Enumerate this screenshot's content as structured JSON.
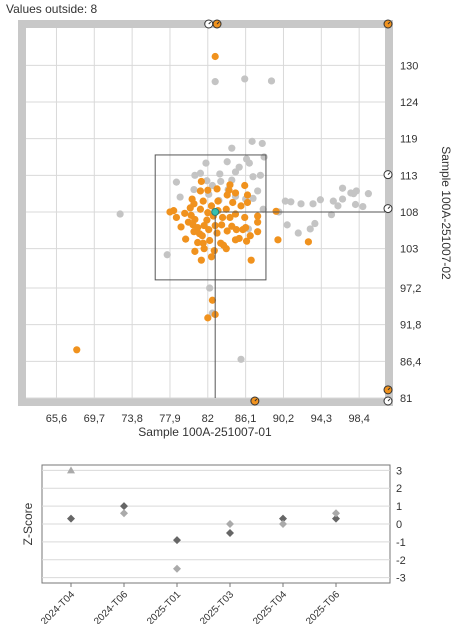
{
  "header": {
    "values_outside": "Values outside: 8"
  },
  "colors": {
    "frame": "#c8c8c8",
    "plot_bg": "#ffffff",
    "grid": "#d9d9d9",
    "orange": "#f0921e",
    "gray_point": "#c4c4c4",
    "center_point": "#36c0b0",
    "marker_dark": "#555555",
    "diamond_dark": "#666666",
    "diamond_light": "#aaaaaa"
  },
  "chart_data": [
    {
      "type": "scatter",
      "title": "",
      "xlabel": "Sample 100A-251007-01",
      "ylabel": "Sample 100A-251007-02",
      "xlim": [
        62.3,
        101.2
      ],
      "ylim": [
        81,
        135.5
      ],
      "x_ticks": [
        "65,6",
        "69,7",
        "73,8",
        "77,9",
        "82",
        "86,1",
        "90,2",
        "94,3",
        "98,4"
      ],
      "x_tick_values": [
        65.6,
        69.7,
        73.8,
        77.9,
        82,
        86.1,
        90.2,
        94.3,
        98.4
      ],
      "y_ticks": [
        "130",
        "124",
        "119",
        "113",
        "108",
        "103",
        "97,2",
        "91,8",
        "86,4",
        "81"
      ],
      "y_tick_values": [
        130,
        124.6,
        119.2,
        113.8,
        108.4,
        103,
        97.2,
        91.8,
        86.4,
        81
      ],
      "grid": true,
      "center": {
        "x": 82.8,
        "y": 108.4
      },
      "inner_box": {
        "x": [
          76.3,
          88.3
        ],
        "y": [
          98.4,
          116.8
        ]
      },
      "series": [
        {
          "color": "gray",
          "points": [
            [
              82.8,
              127.6
            ],
            [
              86.0,
              128.0
            ],
            [
              88.9,
              127.7
            ],
            [
              86.8,
              118.8
            ],
            [
              87.9,
              118.5
            ],
            [
              84.6,
              117.8
            ],
            [
              88.1,
              116.5
            ],
            [
              86.2,
              116.2
            ],
            [
              84.1,
              115.8
            ],
            [
              86.5,
              115.6
            ],
            [
              81.8,
              115.6
            ],
            [
              80.6,
              113.8
            ],
            [
              87.7,
              113.8
            ],
            [
              83.4,
              112.9
            ],
            [
              78.6,
              112.8
            ],
            [
              79.0,
              110.6
            ],
            [
              86.9,
              110.4
            ],
            [
              90.4,
              110.0
            ],
            [
              91.0,
              109.9
            ],
            [
              92.1,
              109.6
            ],
            [
              93.4,
              109.6
            ],
            [
              94.2,
              110.2
            ],
            [
              95.6,
              110.0
            ],
            [
              96.1,
              109.3
            ],
            [
              96.6,
              110.3
            ],
            [
              96.6,
              111.9
            ],
            [
              97.5,
              111.2
            ],
            [
              98.1,
              111.5
            ],
            [
              97.8,
              111.1
            ],
            [
              98.0,
              109.5
            ],
            [
              99.4,
              111.1
            ],
            [
              98.8,
              109.2
            ],
            [
              88.0,
              108.8
            ],
            [
              89.7,
              108.4
            ],
            [
              90.6,
              106.5
            ],
            [
              93.6,
              106.7
            ],
            [
              95.4,
              108.0
            ],
            [
              91.8,
              105.3
            ],
            [
              93.1,
              105.9
            ],
            [
              86.4,
              105.9
            ],
            [
              72.5,
              108.1
            ],
            [
              77.6,
              102.1
            ],
            [
              82.2,
              97.2
            ],
            [
              82.5,
              93.5
            ],
            [
              85.6,
              86.7
            ],
            [
              81.9,
              113.0
            ],
            [
              82.5,
              112.3
            ],
            [
              85.0,
              110.7
            ],
            [
              83.2,
              110.1
            ],
            [
              84.6,
              113.1
            ],
            [
              86.9,
              113.6
            ],
            [
              83.3,
              114.0
            ],
            [
              85.0,
              114.3
            ],
            [
              85.4,
              115.0
            ],
            [
              81.2,
              114.1
            ],
            [
              82.1,
              111.0
            ],
            [
              80.5,
              111.7
            ],
            [
              86.1,
              110.3
            ],
            [
              87.4,
              111.5
            ],
            [
              84.2,
              111.7
            ]
          ]
        },
        {
          "color": "orange",
          "points": [
            [
              82.8,
              131.3
            ],
            [
              78.3,
              108.6
            ],
            [
              77.9,
              108.4
            ],
            [
              78.6,
              107.6
            ],
            [
              79.5,
              108.2
            ],
            [
              79.9,
              106.9
            ],
            [
              80.1,
              109.0
            ],
            [
              80.2,
              107.9
            ],
            [
              80.4,
              106.5
            ],
            [
              80.6,
              107.3
            ],
            [
              80.9,
              106.1
            ],
            [
              81.1,
              105.2
            ],
            [
              80.5,
              105.5
            ],
            [
              80.9,
              103.9
            ],
            [
              81.5,
              103.8
            ],
            [
              81.2,
              108.8
            ],
            [
              81.5,
              110.0
            ],
            [
              81.2,
              111.5
            ],
            [
              81.3,
              112.9
            ],
            [
              82.0,
              111.6
            ],
            [
              81.4,
              104.9
            ],
            [
              82.1,
              105.8
            ],
            [
              82.2,
              104.2
            ],
            [
              83.0,
              105.3
            ],
            [
              82.8,
              106.4
            ],
            [
              83.1,
              110.0
            ],
            [
              83.6,
              107.6
            ],
            [
              84.4,
              107.6
            ],
            [
              84.0,
              108.8
            ],
            [
              84.6,
              106.3
            ],
            [
              84.1,
              105.6
            ],
            [
              85.0,
              104.3
            ],
            [
              85.8,
              105.8
            ],
            [
              86.1,
              106.1
            ],
            [
              86.6,
              104.9
            ],
            [
              85.4,
              104.5
            ],
            [
              86.2,
              104.1
            ],
            [
              85.6,
              109.3
            ],
            [
              86.3,
              109.8
            ],
            [
              87.4,
              107.8
            ],
            [
              87.4,
              106.9
            ],
            [
              87.4,
              105.5
            ],
            [
              86.7,
              101.3
            ],
            [
              84.1,
              110.9
            ],
            [
              85.0,
              111.2
            ],
            [
              86.3,
              110.9
            ],
            [
              89.4,
              108.5
            ],
            [
              89.6,
              104.3
            ],
            [
              92.9,
              104.0
            ],
            [
              82.0,
              108.3
            ],
            [
              82.4,
              109.3
            ],
            [
              81.9,
              107.2
            ],
            [
              82.6,
              107.8
            ],
            [
              83.1,
              108.6
            ],
            [
              83.4,
              103.8
            ],
            [
              83.7,
              103.5
            ],
            [
              84.0,
              103.0
            ],
            [
              82.4,
              101.8
            ],
            [
              81.3,
              101.3
            ],
            [
              80.6,
              102.6
            ],
            [
              84.7,
              109.8
            ],
            [
              84.3,
              111.6
            ],
            [
              82.5,
              95.4
            ],
            [
              82.8,
              93.3
            ],
            [
              82.0,
              92.8
            ],
            [
              67.8,
              88.1
            ],
            [
              81.6,
              103.0
            ],
            [
              82.7,
              102.7
            ],
            [
              79.6,
              104.4
            ],
            [
              79.1,
              106.2
            ],
            [
              80.3,
              110.3
            ],
            [
              83.0,
              111.8
            ],
            [
              84.4,
              112.4
            ],
            [
              86.0,
              112.3
            ],
            [
              85.0,
              108.1
            ],
            [
              86.0,
              107.6
            ],
            [
              83.5,
              106.5
            ],
            [
              85.1,
              105.8
            ],
            [
              81.6,
              106.4
            ],
            [
              80.5,
              109.6
            ]
          ]
        }
      ],
      "outside_markers": [
        {
          "x": 82.1,
          "edge": "top",
          "style": "dark"
        },
        {
          "x": 83.0,
          "edge": "top",
          "style": "orange"
        },
        {
          "x": 101.2,
          "edge": "top-right",
          "style": "orange"
        },
        {
          "y": 113.9,
          "edge": "right",
          "style": "dark"
        },
        {
          "y": 108.9,
          "edge": "right",
          "style": "dark"
        },
        {
          "x": 87.1,
          "edge": "bottom",
          "style": "orange"
        },
        {
          "x": 101.2,
          "edge": "bottom-right",
          "style": "dark"
        },
        {
          "x": 101.2,
          "y": 82.2,
          "edge": "right",
          "style": "orange"
        }
      ]
    },
    {
      "type": "scatter",
      "ylabel": "Z-Score",
      "ylim": [
        -3.3,
        3.3
      ],
      "y_ticks": [
        "3",
        "2",
        "1",
        "0",
        "-1",
        "-2",
        "-3"
      ],
      "y_tick_values": [
        3,
        2,
        1,
        0,
        -1,
        -2,
        -3
      ],
      "categories": [
        "2024-T04",
        "2024-T06",
        "2025-T01",
        "2025-T03",
        "2025-T04",
        "2025-T06"
      ],
      "series": [
        {
          "style": "dark",
          "values": [
            0.3,
            1.0,
            -0.9,
            -0.5,
            0.3,
            0.3
          ]
        },
        {
          "style": "light",
          "values": [
            null,
            0.6,
            -2.5,
            0.0,
            0.0,
            0.6
          ]
        }
      ],
      "triangle": {
        "category": "2024-T04",
        "value": 3.0
      }
    }
  ]
}
